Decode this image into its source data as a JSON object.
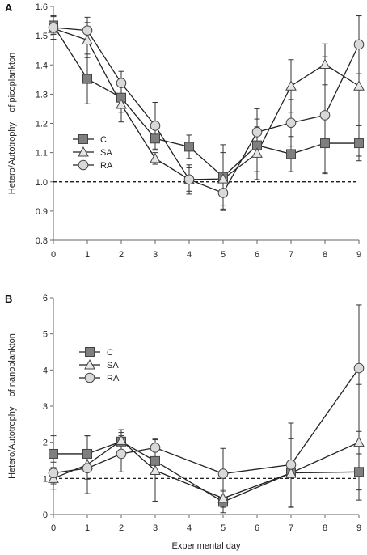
{
  "chart_data": [
    {
      "type": "line",
      "panel_label": "A",
      "ylabel": "Hetero/Autotrophy    of picoplankton",
      "xlabel": "",
      "x": [
        0,
        1,
        2,
        3,
        4,
        5,
        6,
        7,
        8,
        9
      ],
      "xlim": [
        0,
        9
      ],
      "ylim": [
        0.8,
        1.6
      ],
      "yticks": [
        0.8,
        0.9,
        1.0,
        1.1,
        1.2,
        1.3,
        1.4,
        1.5,
        1.6
      ],
      "yticklabels": [
        "0.8",
        "0.9",
        "1.0",
        "1.1",
        "1.2",
        "1.3",
        "1.4",
        "1.5",
        "1.6"
      ],
      "reference_line": 1.0,
      "legend_position": "left-middle",
      "series": [
        {
          "name": "C",
          "marker": "square",
          "color": "#7f7f7f",
          "values": [
            1.535,
            1.352,
            1.288,
            1.148,
            1.12,
            1.017,
            1.125,
            1.095,
            1.132,
            1.132
          ],
          "errors": [
            0.03,
            0.085,
            0.05,
            0.04,
            0.04,
            0.11,
            0.09,
            0.06,
            0.1,
            0.06
          ]
        },
        {
          "name": "SA",
          "marker": "triangle",
          "color": "#e6e6e6",
          "values": [
            1.525,
            1.485,
            1.265,
            1.08,
            1.008,
            1.01,
            1.098,
            1.328,
            1.402,
            1.328
          ],
          "errors": [
            0.02,
            0.06,
            0.06,
            0.02,
            0.05,
            0.09,
            0.09,
            0.09,
            0.07,
            0.24
          ]
        },
        {
          "name": "RA",
          "marker": "circle",
          "color": "#d9d9d9",
          "values": [
            1.528,
            1.518,
            1.338,
            1.192,
            1.008,
            0.962,
            1.17,
            1.202,
            1.228,
            1.47
          ],
          "errors": [
            0.04,
            0.045,
            0.04,
            0.08,
            0.04,
            0.06,
            0.08,
            0.08,
            0.2,
            0.1
          ]
        }
      ]
    },
    {
      "type": "line",
      "panel_label": "B",
      "ylabel": "Hetero/Autotrophy    of nanoplankton",
      "xlabel": "Experimental day",
      "x": [
        0,
        1,
        2,
        3,
        5,
        7,
        9
      ],
      "xlim": [
        0,
        9
      ],
      "xticks": [
        0,
        1,
        2,
        3,
        4,
        5,
        6,
        7,
        8,
        9
      ],
      "ylim": [
        0,
        6
      ],
      "yticks": [
        0,
        1,
        2,
        3,
        4,
        5,
        6
      ],
      "yticklabels": [
        "0",
        "1",
        "2",
        "3",
        "4",
        "5",
        "6"
      ],
      "reference_line": 1.0,
      "legend_position": "upper-left",
      "series": [
        {
          "name": "C",
          "marker": "square",
          "color": "#7f7f7f",
          "values": [
            1.68,
            1.68,
            2.02,
            1.48,
            0.35,
            1.15,
            1.18
          ],
          "errors": [
            0.5,
            0.5,
            0.25,
            0.3,
            0.3,
            0.95,
            0.5
          ]
        },
        {
          "name": "SA",
          "marker": "triangle",
          "color": "#e6e6e6",
          "values": [
            1.0,
            1.38,
            2.05,
            1.22,
            0.45,
            1.15,
            2.0
          ],
          "errors": [
            0.3,
            0.8,
            0.3,
            0.85,
            0.25,
            0.95,
            1.6
          ]
        },
        {
          "name": "RA",
          "marker": "circle",
          "color": "#d9d9d9",
          "values": [
            1.15,
            1.28,
            1.68,
            1.85,
            1.13,
            1.38,
            4.05
          ],
          "errors": [
            0.3,
            0.3,
            0.5,
            0.25,
            0.7,
            1.15,
            1.75
          ]
        }
      ]
    }
  ]
}
